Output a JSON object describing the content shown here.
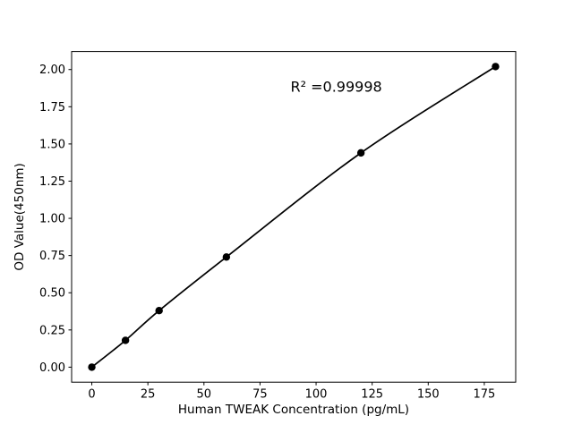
{
  "chart_data": {
    "type": "line",
    "title": "",
    "xlabel": "Human TWEAK Concentration (pg/mL)",
    "ylabel": "OD Value(450nm)",
    "x": [
      0,
      15,
      30,
      60,
      120,
      180
    ],
    "y": [
      0.0,
      0.18,
      0.38,
      0.74,
      1.44,
      2.02
    ],
    "xticks": [
      0,
      25,
      50,
      75,
      100,
      125,
      150,
      175
    ],
    "yticks": [
      0.0,
      0.25,
      0.5,
      0.75,
      1.0,
      1.25,
      1.5,
      1.75,
      2.0
    ],
    "xlim": [
      -9,
      189
    ],
    "ylim": [
      -0.101,
      2.121
    ],
    "annotation": "R² =0.99998",
    "annotation_x": 109,
    "annotation_y": 1.85,
    "line_color": "#000000",
    "marker_color": "#000000",
    "axis_color": "#000000",
    "background": "#ffffff",
    "legend": "none",
    "grid": false
  }
}
